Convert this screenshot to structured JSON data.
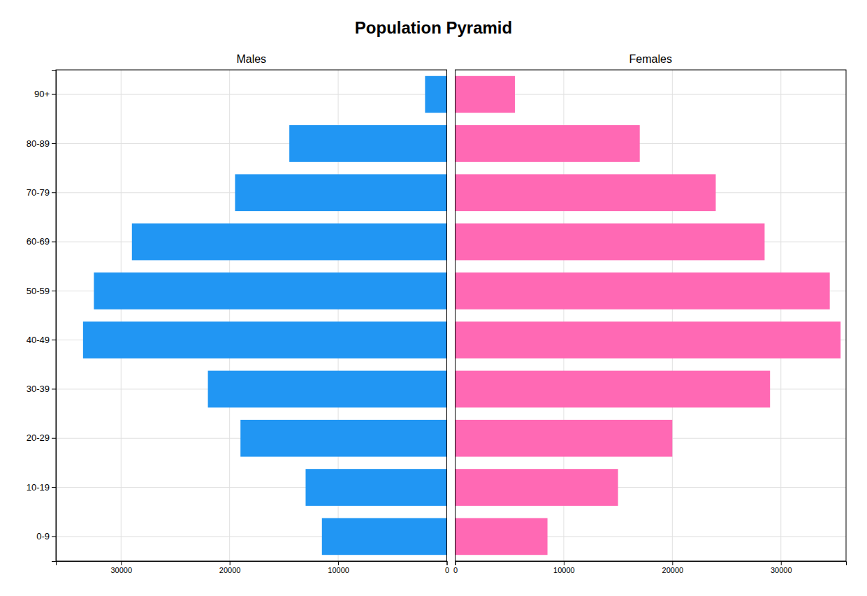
{
  "chart_data": {
    "type": "bar",
    "orientation": "horizontal",
    "title": "Population Pyramid",
    "categories": [
      "0-9",
      "10-19",
      "20-29",
      "30-39",
      "40-49",
      "50-59",
      "60-69",
      "70-79",
      "80-89",
      "90+"
    ],
    "series": [
      {
        "name": "Males",
        "color": "#2196F3",
        "values": [
          11500,
          13000,
          19000,
          22000,
          33500,
          32500,
          29000,
          19500,
          14500,
          2000
        ],
        "xlim": [
          36000,
          0
        ],
        "xticks": [
          30000,
          20000,
          10000,
          0
        ]
      },
      {
        "name": "Females",
        "color": "#FF69B4",
        "values": [
          8500,
          15000,
          20000,
          29000,
          35500,
          34500,
          28500,
          24000,
          17000,
          5500
        ],
        "xlim": [
          0,
          36000
        ],
        "xticks": [
          0,
          10000,
          20000,
          30000
        ]
      }
    ],
    "grid": true
  }
}
